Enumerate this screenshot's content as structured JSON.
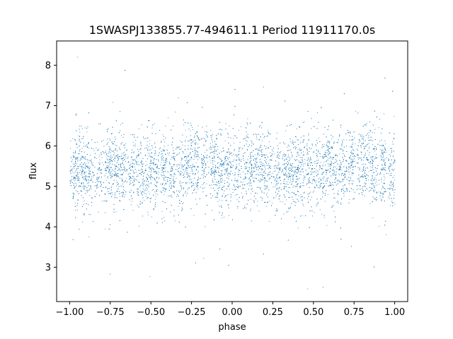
{
  "chart_data": {
    "type": "scatter",
    "title": "1SWASPJ133855.77-494611.1 Period 11911170.0s",
    "xlabel": "phase",
    "ylabel": "flux",
    "xlim": [
      -1.08,
      1.08
    ],
    "ylim": [
      2.15,
      8.6
    ],
    "xticks": [
      -1.0,
      -0.75,
      -0.5,
      -0.25,
      0.0,
      0.25,
      0.5,
      0.75,
      1.0
    ],
    "xtick_labels": [
      "−1.00",
      "−0.75",
      "−0.50",
      "−0.25",
      "0.00",
      "0.25",
      "0.50",
      "0.75",
      "1.00"
    ],
    "yticks": [
      3,
      4,
      5,
      6,
      7,
      8
    ],
    "ytick_labels": [
      "3",
      "4",
      "5",
      "6",
      "7",
      "8"
    ],
    "grid": false,
    "legend": "none",
    "marker_color": "#1f77b4",
    "series": [
      {
        "phase_range": [
          -1.0,
          1.0
        ],
        "flux_median": 5.4,
        "flux_core_range": [
          4.3,
          6.7
        ],
        "flux_outlier_range": [
          2.4,
          8.5
        ],
        "bright_phase_peaks": [
          -0.2,
          0.8
        ],
        "point_count": 9000
      }
    ]
  }
}
